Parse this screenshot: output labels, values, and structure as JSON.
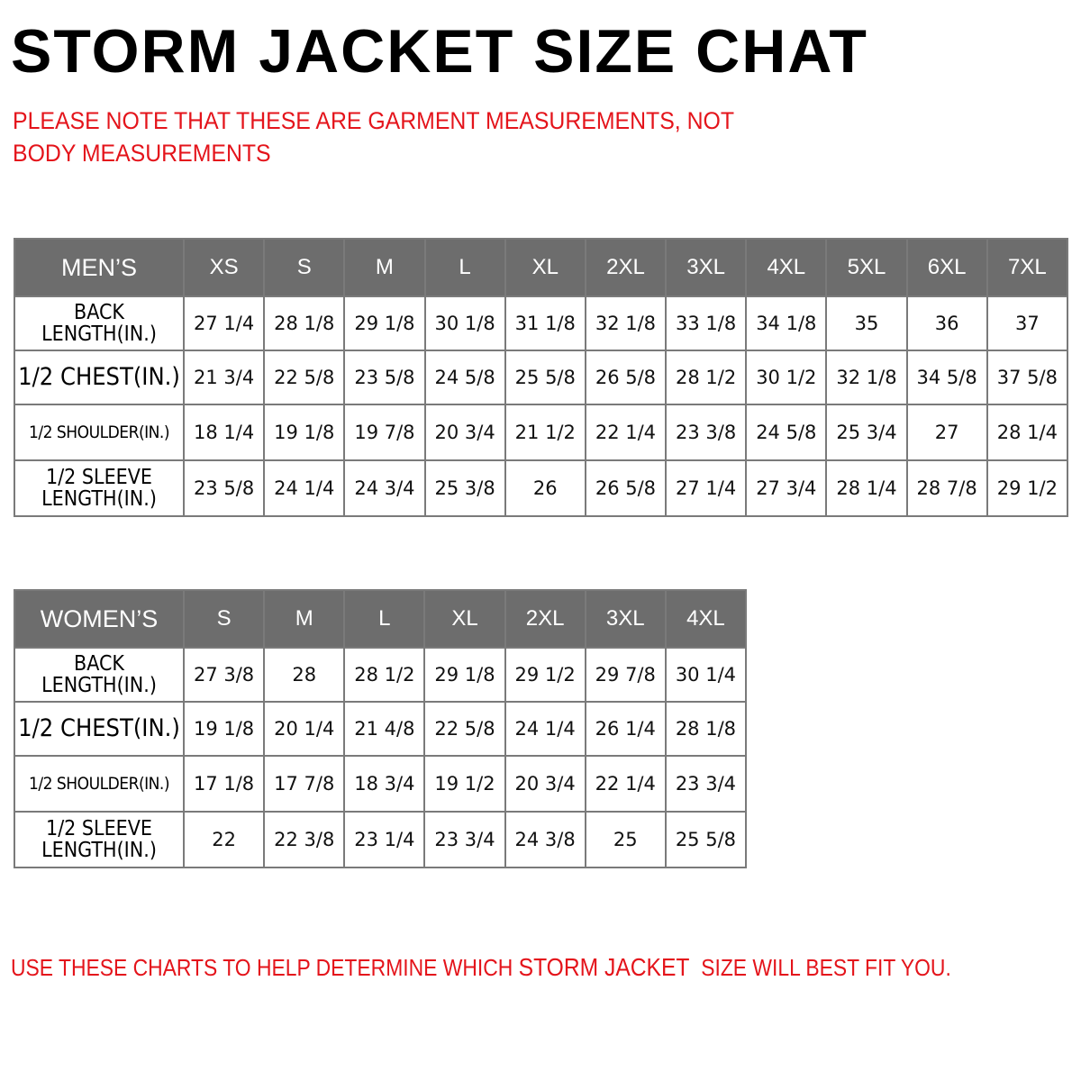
{
  "title": "STORM JACKET SIZE CHAT",
  "note": "PLEASE NOTE THAT THESE ARE GARMENT MEASUREMENTS, NOT BODY MEASUREMENTS",
  "mens": {
    "header": "MEN’S",
    "sizes": [
      "XS",
      "S",
      "M",
      "L",
      "XL",
      "2XL",
      "3XL",
      "4XL",
      "5XL",
      "6XL",
      "7XL"
    ],
    "rows": [
      {
        "label": "BACK\nLENGTH(IN.)",
        "values": [
          "27 1/4",
          "28 1/8",
          "29 1/8",
          "30 1/8",
          "31 1/8",
          "32 1/8",
          "33 1/8",
          "34 1/8",
          "35",
          "36",
          "37"
        ]
      },
      {
        "label": "1/2 CHEST(IN.)",
        "values": [
          "21 3/4",
          "22 5/8",
          "23 5/8",
          "24 5/8",
          "25 5/8",
          "26 5/8",
          "28 1/2",
          "30 1/2",
          "32 1/8",
          "34 5/8",
          "37 5/8"
        ]
      },
      {
        "label": "1/2 SHOULDER(IN.)",
        "values": [
          "18 1/4",
          "19 1/8",
          "19 7/8",
          "20 3/4",
          "21 1/2",
          "22 1/4",
          "23 3/8",
          "24 5/8",
          "25 3/4",
          "27",
          "28 1/4"
        ]
      },
      {
        "label": "1/2 SLEEVE\nLENGTH(IN.)",
        "values": [
          "23 5/8",
          "24 1/4",
          "24 3/4",
          "25 3/8",
          "26",
          "26 5/8",
          "27 1/4",
          "27 3/4",
          "28 1/4",
          "28 7/8",
          "29 1/2"
        ]
      }
    ]
  },
  "womens": {
    "header": "WOMEN’S",
    "sizes": [
      "S",
      "M",
      "L",
      "XL",
      "2XL",
      "3XL",
      "4XL"
    ],
    "rows": [
      {
        "label": "BACK\nLENGTH(IN.)",
        "values": [
          "27 3/8",
          "28",
          "28 1/2",
          "29 1/8",
          "29 1/2",
          "29 7/8",
          "30 1/4"
        ]
      },
      {
        "label": "1/2 CHEST(IN.)",
        "values": [
          "19 1/8",
          "20 1/4",
          "21 4/8",
          "22 5/8",
          "24 1/4",
          "26 1/4",
          "28 1/8"
        ]
      },
      {
        "label": "1/2 SHOULDER(IN.)",
        "values": [
          "17 1/8",
          "17 7/8",
          "18 3/4",
          "19 1/2",
          "20 3/4",
          "22 1/4",
          "23 3/4"
        ]
      },
      {
        "label": "1/2 SLEEVE\nLENGTH(IN.)",
        "values": [
          "22",
          "22 3/8",
          "23 1/4",
          "23 3/4",
          "24 3/8",
          "25",
          "25 5/8"
        ]
      }
    ]
  },
  "footer": {
    "before": "USE THESE CHARTS TO HELP DETERMINE WHICH ",
    "brand": "STORM JACKET",
    "after": "  SIZE WILL BEST FIT YOU."
  },
  "colors": {
    "accent_red": "#e4141b",
    "header_gray": "#6d6d6d"
  }
}
